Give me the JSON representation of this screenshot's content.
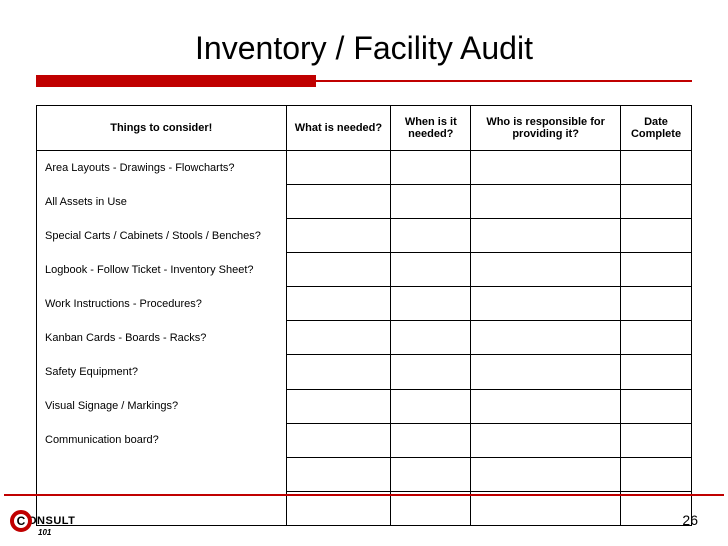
{
  "title": "Inventory / Facility Audit",
  "accent_color": "#c00000",
  "background_color": "#ffffff",
  "table": {
    "columns": [
      "Things to consider!",
      "What is needed?",
      "When is it needed?",
      "Who is responsible for providing it?",
      "Date Complete"
    ],
    "rows": [
      "Area Layouts - Drawings - Flowcharts?",
      "All Assets in Use",
      "Special Carts / Cabinets / Stools / Benches?",
      "Logbook - Follow Ticket - Inventory Sheet?",
      "Work Instructions - Procedures?",
      "Kanban Cards - Boards - Racks?",
      "Safety Equipment?",
      "Visual Signage / Markings?",
      "Communication board?",
      "",
      ""
    ]
  },
  "logo": {
    "letter": "C",
    "text": "ONSULT",
    "sub": "101"
  },
  "page_number": "26"
}
